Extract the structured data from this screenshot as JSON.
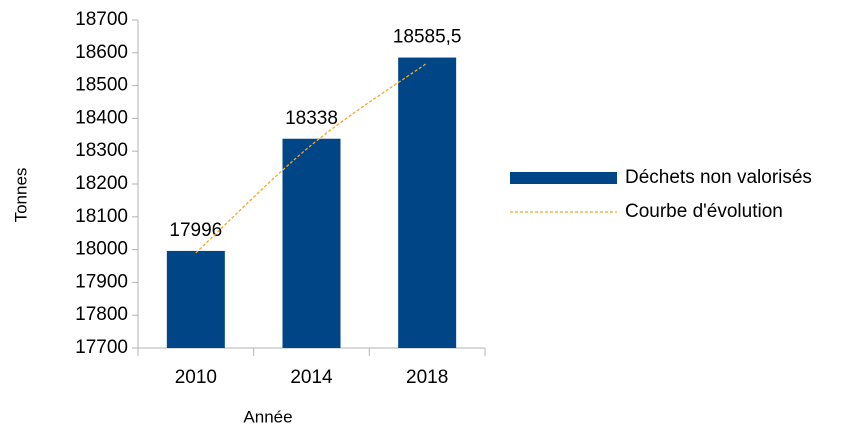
{
  "chart_data": {
    "type": "bar",
    "categories": [
      "2010",
      "2014",
      "2018"
    ],
    "series": [
      {
        "name": "Déchets non valorisés",
        "color": "#004586",
        "values": [
          17996,
          18338,
          18585.5
        ],
        "value_labels": [
          "17996",
          "18338",
          "18585,5"
        ]
      },
      {
        "name": "Courbe d'évolution",
        "type": "line",
        "dashed": true,
        "color": "#f5a623",
        "values": [
          17990,
          18319,
          18569
        ]
      }
    ],
    "xlabel": "Année",
    "ylabel": "Tonnes",
    "ylim": [
      17700,
      18700
    ],
    "yticks": [
      17700,
      17800,
      17900,
      18000,
      18100,
      18200,
      18300,
      18400,
      18500,
      18600,
      18700
    ],
    "grid": false,
    "legend": "right"
  }
}
